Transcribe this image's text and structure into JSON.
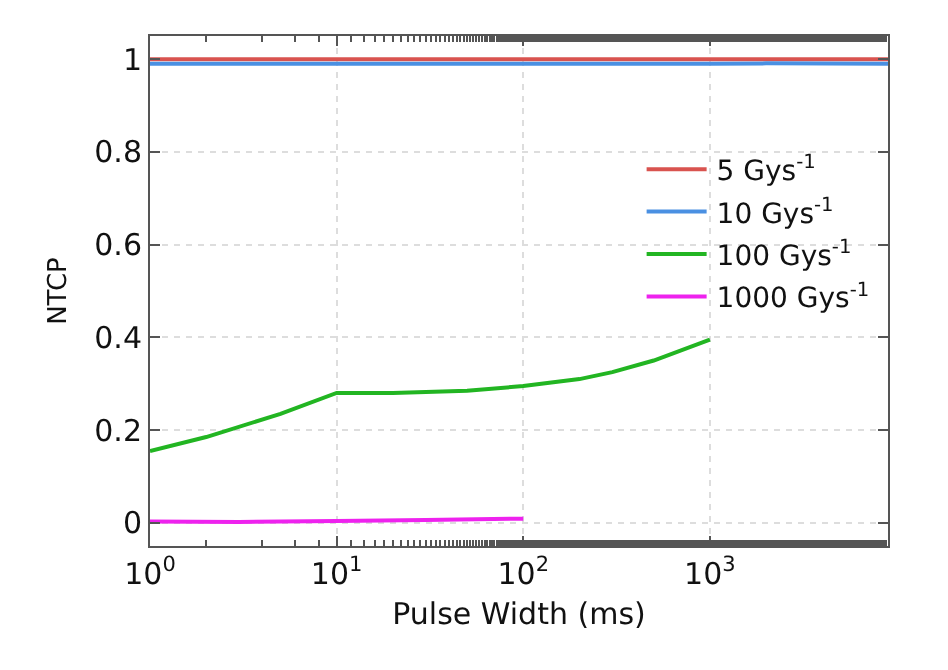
{
  "chart_data": {
    "type": "line",
    "xlabel": "Pulse Width (ms)",
    "ylabel": "NTCP",
    "log": "x",
    "grid": true,
    "legend": "top right",
    "xlim": [
      1,
      9000
    ],
    "xticks": [
      {
        "value": 1,
        "label": "10$^{0}$"
      },
      {
        "value": 10,
        "label": "10$^{1}$"
      },
      {
        "value": 100,
        "label": "10$^{2}$"
      },
      {
        "value": 1000,
        "label": "10$^{3}$"
      }
    ],
    "ylim": [
      -0.05,
      1.05
    ],
    "yticks": [
      0,
      0.2,
      0.4,
      0.6,
      0.8,
      1
    ],
    "series": [
      {
        "name": "5 Gys$^{-1}$",
        "color": "#d9534f",
        "x": [
          1,
          10,
          100,
          1000,
          9000
        ],
        "values": [
          1.0,
          1.0,
          1.0,
          1.0,
          1.0
        ]
      },
      {
        "name": "10 Gys$^{-1}$",
        "color": "#4a90e2",
        "x": [
          1,
          10,
          100,
          1000,
          2000,
          9000
        ],
        "values": [
          0.99,
          0.99,
          0.99,
          0.99,
          0.991,
          0.99
        ]
      },
      {
        "name": "100 Gys$^{-1}$",
        "color": "#22b522",
        "x": [
          1,
          2,
          5,
          10,
          20,
          50,
          100,
          200,
          300,
          500,
          1000
        ],
        "values": [
          0.155,
          0.185,
          0.235,
          0.28,
          0.28,
          0.285,
          0.295,
          0.31,
          0.325,
          0.35,
          0.395
        ]
      },
      {
        "name": "1000 Gys$^{-1}$",
        "color": "#ee22ee",
        "x": [
          1,
          3,
          10,
          30,
          100
        ],
        "values": [
          0.003,
          0.002,
          0.004,
          0.006,
          0.009
        ]
      }
    ]
  }
}
